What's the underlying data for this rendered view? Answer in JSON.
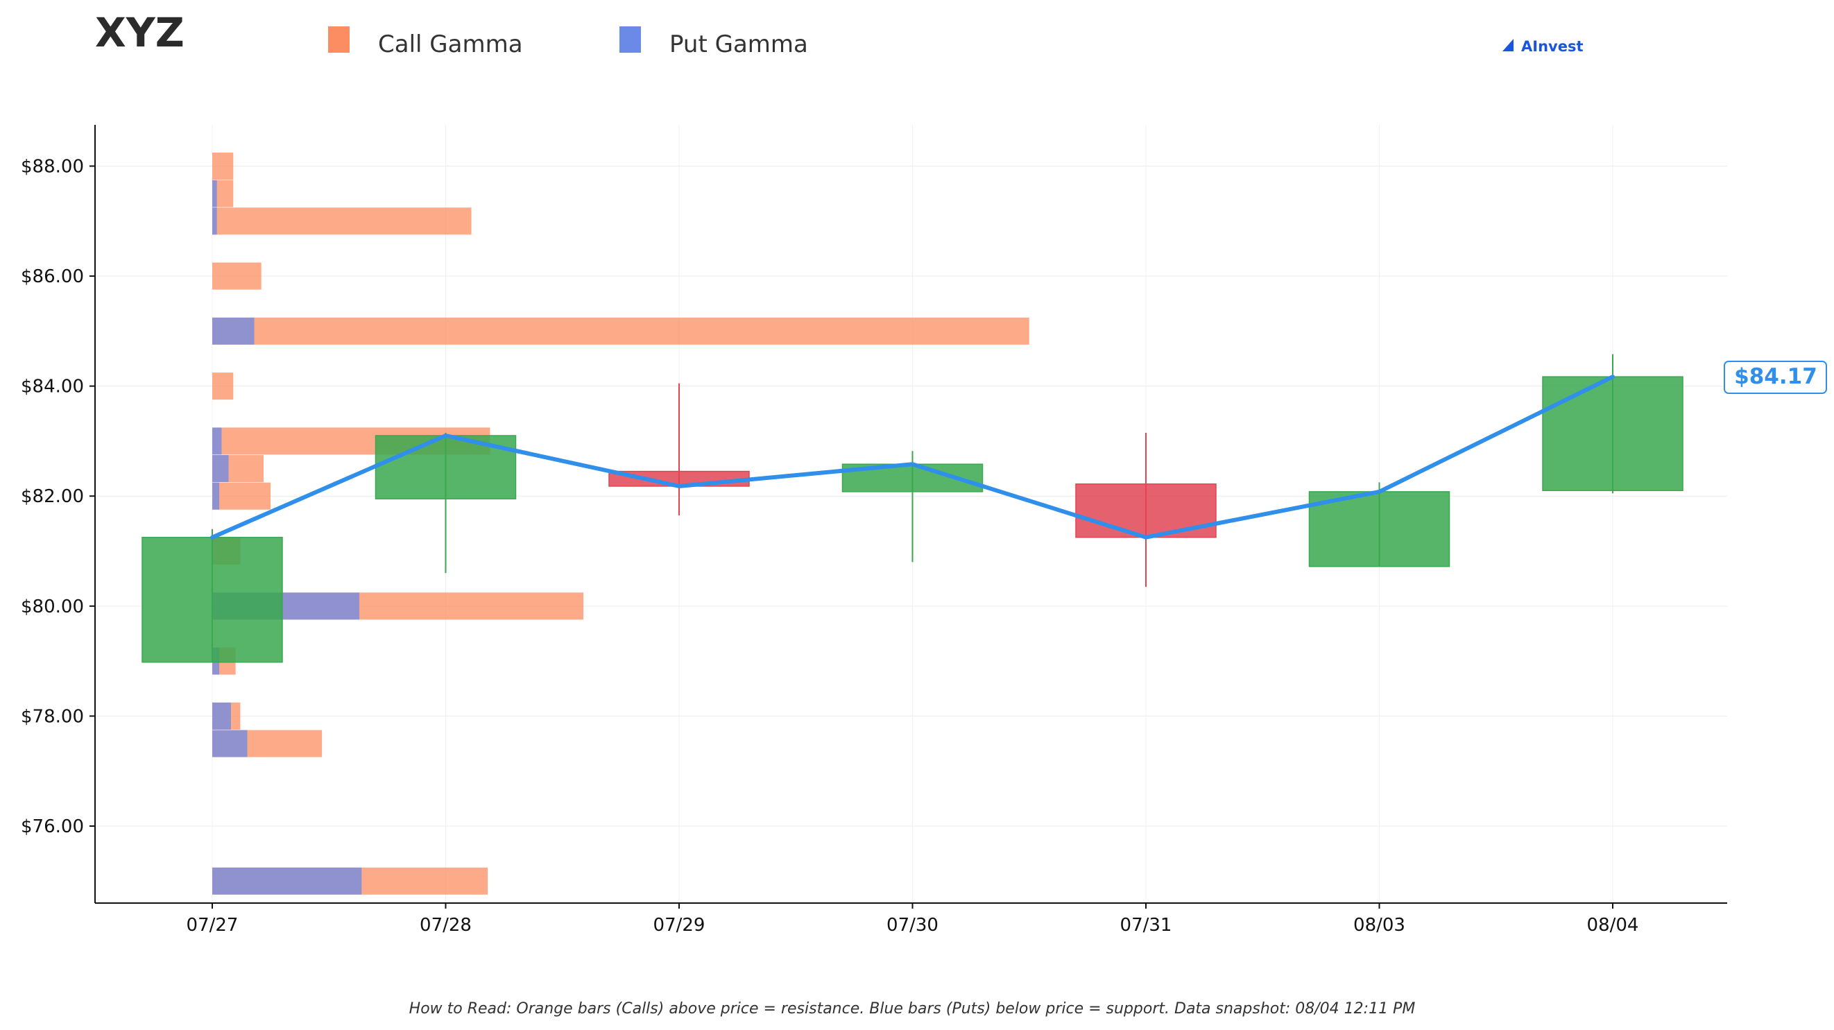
{
  "header": {
    "title": "XYZ",
    "brand": "AInvest"
  },
  "legend": {
    "call_label": "Call Gamma",
    "put_label": "Put Gamma",
    "call_color": "#fc8d62",
    "put_color": "#6b8ae8"
  },
  "footer": {
    "note": "How to Read: Orange bars (Calls) above price = resistance. Blue bars (Puts) below price = support. Data snapshot: 08/04 12:11 PM"
  },
  "price_label": "$84.17",
  "chart_data": {
    "type": "candlestick",
    "dates": [
      "07/27",
      "07/28",
      "07/29",
      "07/30",
      "07/31",
      "08/03",
      "08/04"
    ],
    "ohlc": [
      {
        "date": "07/27",
        "open": 78.98,
        "high": 81.4,
        "low": 78.98,
        "close": 81.25
      },
      {
        "date": "07/28",
        "open": 81.95,
        "high": 83.15,
        "low": 80.6,
        "close": 83.1
      },
      {
        "date": "07/29",
        "open": 82.45,
        "high": 84.05,
        "low": 81.65,
        "close": 82.18
      },
      {
        "date": "07/30",
        "open": 82.08,
        "high": 82.82,
        "low": 80.8,
        "close": 82.58
      },
      {
        "date": "07/31",
        "open": 82.22,
        "high": 83.15,
        "low": 80.35,
        "close": 81.25
      },
      {
        "date": "08/03",
        "open": 80.72,
        "high": 82.25,
        "low": 80.72,
        "close": 82.08
      },
      {
        "date": "08/04",
        "open": 82.1,
        "high": 84.58,
        "low": 82.05,
        "close": 84.17
      }
    ],
    "close_line": [
      81.25,
      83.1,
      82.18,
      82.58,
      81.25,
      82.08,
      84.17
    ],
    "gamma_by_strike": [
      {
        "strike": 88.0,
        "call": 0.09,
        "put": 0.0
      },
      {
        "strike": 87.5,
        "call": 0.09,
        "put": 0.02
      },
      {
        "strike": 87.0,
        "call": 1.11,
        "put": 0.02
      },
      {
        "strike": 86.0,
        "call": 0.21,
        "put": 0.0
      },
      {
        "strike": 85.0,
        "call": 3.5,
        "put": 0.18
      },
      {
        "strike": 84.0,
        "call": 0.09,
        "put": 0.0
      },
      {
        "strike": 83.0,
        "call": 1.19,
        "put": 0.04
      },
      {
        "strike": 82.5,
        "call": 0.22,
        "put": 0.07
      },
      {
        "strike": 82.0,
        "call": 0.25,
        "put": 0.03
      },
      {
        "strike": 81.0,
        "call": 0.12,
        "put": 0.0
      },
      {
        "strike": 80.0,
        "call": 1.59,
        "put": 0.63
      },
      {
        "strike": 79.0,
        "call": 0.1,
        "put": 0.03
      },
      {
        "strike": 78.0,
        "call": 0.12,
        "put": 0.08
      },
      {
        "strike": 77.5,
        "call": 0.47,
        "put": 0.15
      },
      {
        "strike": 75.0,
        "call": 1.18,
        "put": 0.64
      }
    ],
    "y_ticks": [
      "$76.00",
      "$78.00",
      "$80.00",
      "$82.00",
      "$84.00",
      "$86.00",
      "$88.00"
    ],
    "y_tick_values": [
      76,
      78,
      80,
      82,
      84,
      86,
      88
    ],
    "ylim": [
      74.6,
      88.75
    ],
    "series": [
      {
        "name": "Call Gamma"
      },
      {
        "name": "Put Gamma"
      }
    ],
    "up_color": "#3aa84f",
    "down_color": "#e04555",
    "line_color": "#2f8fea",
    "grid": true,
    "legend_position": "top-left"
  }
}
